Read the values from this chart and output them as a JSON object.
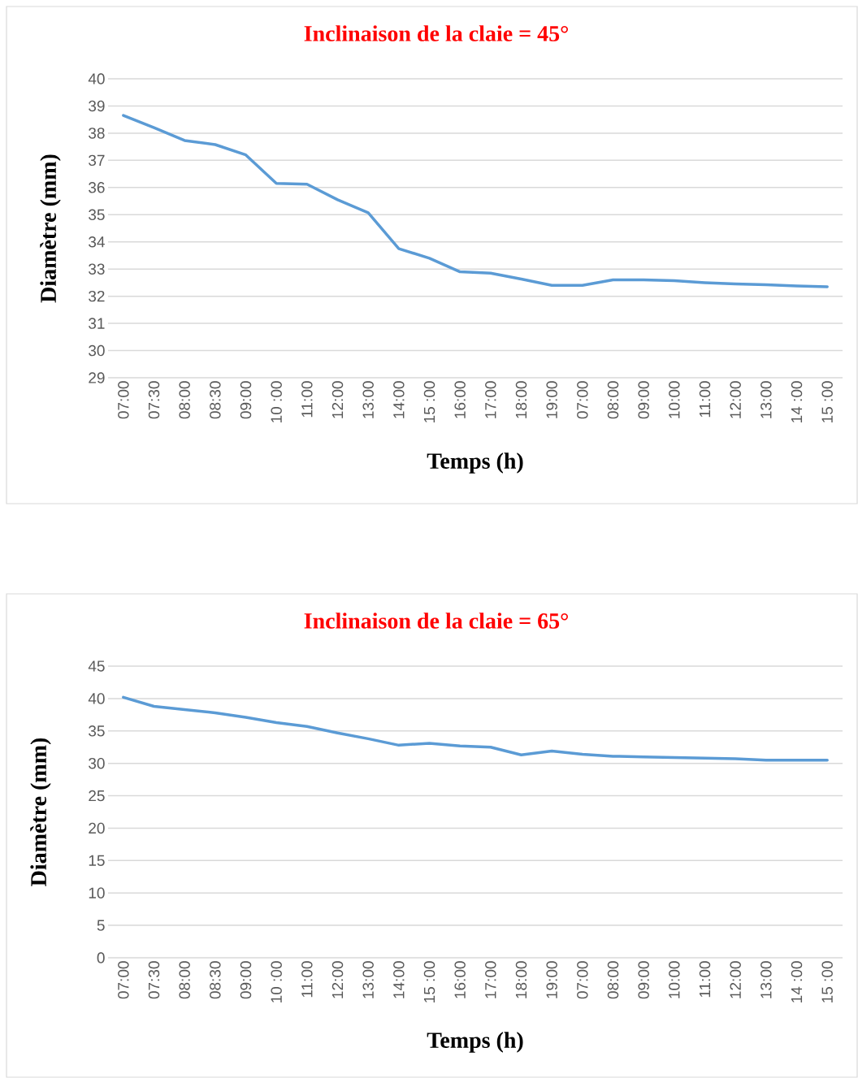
{
  "chart_data": [
    {
      "type": "line",
      "title": "Inclinaison de la claie = 45°",
      "xlabel": "Temps (h)",
      "ylabel": "Diamètre (mm)",
      "categories": [
        "07:00",
        "07:30",
        "08:00",
        "08:30",
        "09:00",
        "10 :00",
        "11:00",
        "12:00",
        "13:00",
        "14:00",
        "15 :00",
        "16:00",
        "17:00",
        "18:00",
        "19:00",
        "07:00",
        "08:00",
        "09:00",
        "10:00",
        "11:00",
        "12:00",
        "13:00",
        "14 :00",
        "15 :00"
      ],
      "series": [
        {
          "color": "#5b9bd5",
          "values": [
            38.65,
            38.2,
            37.73,
            37.58,
            37.2,
            36.15,
            36.12,
            35.55,
            35.07,
            33.75,
            33.4,
            32.9,
            32.85,
            32.63,
            32.4,
            32.4,
            32.6,
            32.6,
            32.57,
            32.5,
            32.45,
            32.42,
            32.38,
            32.35
          ]
        }
      ],
      "ylim": [
        29,
        40
      ],
      "yticks": [
        29,
        30,
        31,
        32,
        33,
        34,
        35,
        36,
        37,
        38,
        39,
        40
      ],
      "grid": "y",
      "line_style": "solid",
      "marker": "none"
    },
    {
      "type": "line",
      "title": "Inclinaison de la claie = 65°",
      "xlabel": "Temps (h)",
      "ylabel": "Diamètre (mm)",
      "categories": [
        "07:00",
        "07:30",
        "08:00",
        "08:30",
        "09:00",
        "10 :00",
        "11:00",
        "12:00",
        "13:00",
        "14:00",
        "15 :00",
        "16:00",
        "17:00",
        "18:00",
        "19:00",
        "07:00",
        "08:00",
        "09:00",
        "10:00",
        "11:00",
        "12:00",
        "13:00",
        "14 :00",
        "15 :00"
      ],
      "series": [
        {
          "color": "#5b9bd5",
          "values": [
            40.2,
            38.8,
            38.3,
            37.8,
            37.1,
            36.3,
            35.7,
            34.7,
            33.8,
            32.8,
            33.1,
            32.7,
            32.5,
            31.3,
            31.9,
            31.4,
            31.1,
            31.0,
            30.9,
            30.8,
            30.7,
            30.5,
            30.5,
            30.5
          ]
        }
      ],
      "ylim": [
        0,
        45
      ],
      "yticks": [
        0,
        5,
        10,
        15,
        20,
        25,
        30,
        35,
        40,
        45
      ],
      "grid": "y",
      "line_style": "solid",
      "marker": "none"
    }
  ]
}
